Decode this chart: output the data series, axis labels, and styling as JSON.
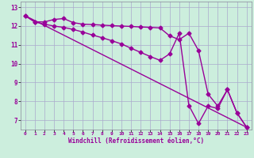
{
  "xlabel": "Windchill (Refroidissement éolien,°C)",
  "background_color": "#cceedd",
  "grid_color": "#aaaacc",
  "line_color": "#990099",
  "xlim": [
    -0.5,
    23.5
  ],
  "ylim": [
    6.5,
    13.3
  ],
  "xticks": [
    0,
    1,
    2,
    3,
    4,
    5,
    6,
    7,
    8,
    9,
    10,
    11,
    12,
    13,
    14,
    15,
    16,
    17,
    18,
    19,
    20,
    21,
    22,
    23
  ],
  "yticks": [
    7,
    8,
    9,
    10,
    11,
    12,
    13
  ],
  "line1_y": [
    12.55,
    12.22,
    12.22,
    12.35,
    12.4,
    12.18,
    12.1,
    12.08,
    12.05,
    12.02,
    12.0,
    11.98,
    11.95,
    11.93,
    11.9,
    11.48,
    11.28,
    11.62,
    10.7,
    8.38,
    7.75,
    8.62,
    7.38,
    6.62
  ],
  "line2_y": [
    12.55,
    12.22,
    12.1,
    12.0,
    11.93,
    11.82,
    11.68,
    11.52,
    11.38,
    11.22,
    11.05,
    10.82,
    10.6,
    10.38,
    10.18,
    10.52,
    11.62,
    7.78,
    6.82,
    7.75,
    7.62,
    8.62,
    7.38,
    6.62
  ],
  "line3_x": [
    0,
    23
  ],
  "line3_y": [
    12.55,
    6.62
  ],
  "marker": "D",
  "markersize": 2.5,
  "linewidth": 1.0
}
